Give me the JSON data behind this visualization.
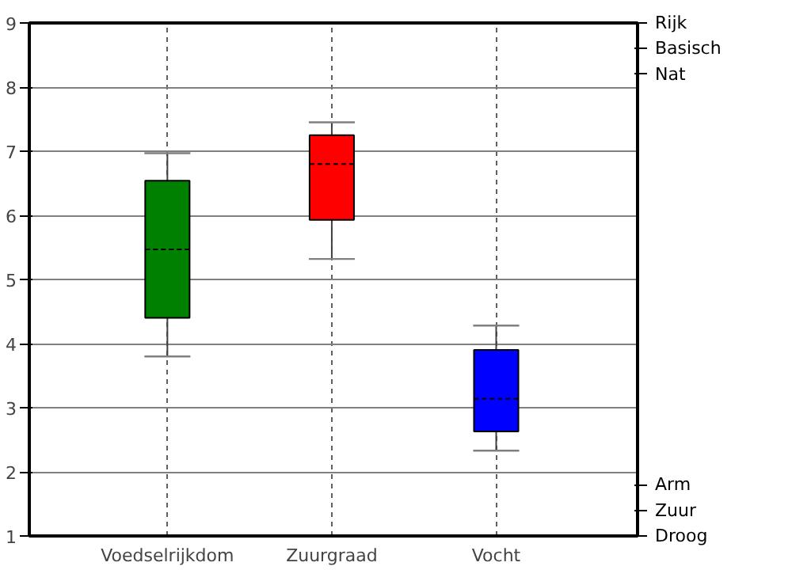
{
  "chart_data": {
    "type": "box",
    "categories": [
      "Voedselrijkdom",
      "Zuurgraad",
      "Vocht"
    ],
    "colors": [
      "#008000",
      "#ff0000",
      "#0000ff"
    ],
    "boxes": [
      {
        "low": 3.8,
        "q1": 4.4,
        "median": 5.47,
        "q3": 6.54,
        "high": 6.97
      },
      {
        "low": 5.32,
        "q1": 5.93,
        "median": 6.8,
        "q3": 7.25,
        "high": 7.45
      },
      {
        "low": 2.33,
        "q1": 2.63,
        "median": 3.14,
        "q3": 3.9,
        "high": 4.28
      }
    ],
    "ylim": [
      1,
      9
    ],
    "yticks": [
      1,
      2,
      3,
      4,
      5,
      6,
      7,
      8,
      9
    ],
    "annotations": [
      "Rijk",
      "Basisch",
      "Nat",
      "Arm",
      "Zuur",
      "Droog"
    ],
    "grid": true
  }
}
